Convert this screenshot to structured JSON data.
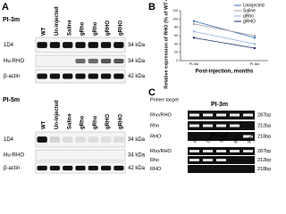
{
  "panel_a": {
    "label": "A",
    "blots": [
      {
        "title": "PI-3m",
        "lanes": [
          "WT",
          "Un-injected",
          "Saline",
          "gRho",
          "gRho",
          "gRHO",
          "gRHO"
        ],
        "rows": [
          {
            "name": "1D4",
            "size": "34 kDa"
          },
          {
            "name": "Hu-RHO",
            "size": "34 kDa"
          },
          {
            "name": "β-actin",
            "size": "42 kDa"
          }
        ]
      },
      {
        "title": "PI-5m",
        "lanes": [
          "WT",
          "Un-injected",
          "Saline",
          "gRho",
          "gRho",
          "gRHO",
          "gRHO"
        ],
        "rows": [
          {
            "name": "1D4",
            "size": "34 kDa"
          },
          {
            "name": "Hu-RHO",
            "size": "34 kDa"
          },
          {
            "name": "β-actin",
            "size": "42 kDa"
          }
        ]
      }
    ]
  },
  "chart_data": {
    "type": "line",
    "label": "B",
    "y_label": "Relative expression of RHO (% of WT control)",
    "x_label": "Post-injection, months",
    "categories": [
      "PI-3m",
      "PI-5m"
    ],
    "series": [
      {
        "name": "Uninjected",
        "color": "#3b6fb0",
        "values": [
          95,
          55
        ]
      },
      {
        "name": "Saline",
        "color": "#a0a0a0",
        "values": [
          88,
          60
        ]
      },
      {
        "name": "gRho",
        "color": "#8fb4e0",
        "values": [
          70,
          40
        ]
      },
      {
        "name": "gRHO",
        "color": "#1d2f6b",
        "values": [
          55,
          30
        ]
      }
    ],
    "ylim": [
      0,
      120
    ],
    "yticks": [
      0,
      20,
      40,
      60,
      80,
      100,
      120
    ]
  },
  "panel_c": {
    "label": "C",
    "primer_header": "Primer target",
    "gels": [
      {
        "title": "PI-3m",
        "lanes": [
          "WT",
          "Uninj.",
          "Saline",
          "gRho",
          "gRHO"
        ],
        "rows": [
          {
            "name": "Rho/RHO",
            "size": "287bp"
          },
          {
            "name": "Rho",
            "size": "212bp"
          },
          {
            "name": "RHO",
            "size": "218bp"
          }
        ]
      },
      {
        "title": "PI-5m",
        "lanes": [
          "WT",
          "Uninj.",
          "Saline",
          "gRho",
          "gRHO"
        ],
        "rows": [
          {
            "name": "Rho/RHO",
            "size": "287bp"
          },
          {
            "name": "Rho",
            "size": "212bp"
          },
          {
            "name": "RHO",
            "size": "218bp"
          }
        ]
      }
    ]
  }
}
